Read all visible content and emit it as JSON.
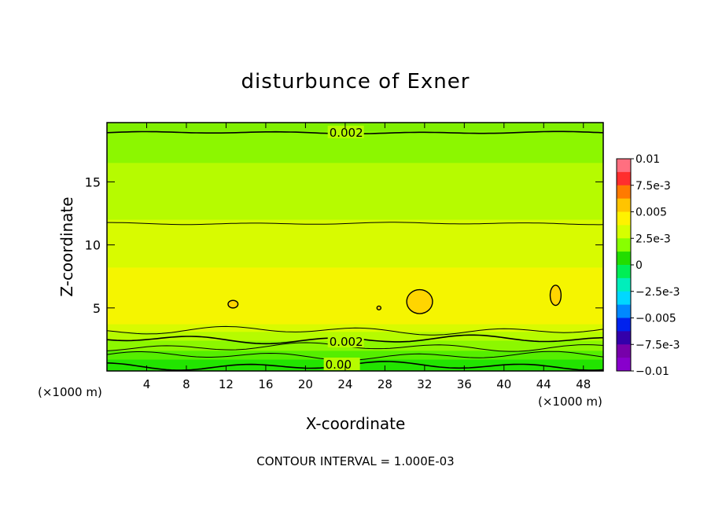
{
  "chart_data": {
    "type": "contour",
    "title": "disturbunce of Exner",
    "xlabel": "X-coordinate",
    "ylabel": "Z-coordinate",
    "x_unit_label_left": "(×1000 m)",
    "x_unit_label_right": "(×1000 m)",
    "xlim": [
      0,
      50
    ],
    "ylim": [
      0,
      19.7
    ],
    "x_ticks": [
      4,
      8,
      12,
      16,
      20,
      24,
      28,
      32,
      36,
      40,
      44,
      48
    ],
    "y_ticks": [
      5,
      10,
      15
    ],
    "footer": "CONTOUR INTERVAL = 1.000E-03",
    "colorbar": {
      "labels": [
        "0.01",
        "7.5e-3",
        "0.005",
        "2.5e-3",
        "0",
        "−2.5e-3",
        "−0.005",
        "−7.5e-3",
        "−0.01"
      ],
      "colors": [
        "#ff6f80",
        "#ff2e2e",
        "#ff7a00",
        "#ffc400",
        "#fff200",
        "#d6ff00",
        "#88ff00",
        "#22dd00",
        "#00ee55",
        "#00eebb",
        "#00d8ff",
        "#0088ff",
        "#0022ee",
        "#3300aa",
        "#7700aa",
        "#8800cc"
      ]
    },
    "contour_labels": [
      {
        "text": "0.002",
        "x": 22.4,
        "z": 18.9
      },
      {
        "text": "0.002",
        "x": 22.4,
        "z": 2.3
      },
      {
        "text": "0.00",
        "x": 22.0,
        "z": 0.5
      }
    ],
    "bands": [
      {
        "z0": 19.0,
        "z1": 19.7,
        "color": "#7fef00"
      },
      {
        "z0": 16.5,
        "z1": 19.0,
        "color": "#8cf700"
      },
      {
        "z0": 12.0,
        "z1": 16.5,
        "color": "#b6fb00"
      },
      {
        "z0": 8.2,
        "z1": 12.0,
        "color": "#d8fb00"
      },
      {
        "z0": 3.7,
        "z1": 8.2,
        "color": "#f5f500"
      },
      {
        "z0": 3.1,
        "z1": 3.7,
        "color": "#d8fb00"
      },
      {
        "z0": 2.4,
        "z1": 3.1,
        "color": "#b6fb00"
      },
      {
        "z0": 1.6,
        "z1": 2.4,
        "color": "#8cf700"
      },
      {
        "z0": 0.9,
        "z1": 1.6,
        "color": "#55ee00"
      },
      {
        "z0": 0.0,
        "z1": 0.9,
        "color": "#22e400"
      }
    ],
    "contours": [
      {
        "z": 18.9,
        "width": 1.6
      },
      {
        "z": 11.7,
        "width": 1.0
      },
      {
        "z": 3.2,
        "width": 1.0
      },
      {
        "z": 2.5,
        "width": 1.6
      },
      {
        "z": 1.9,
        "width": 1.0
      },
      {
        "z": 1.2,
        "width": 1.0
      },
      {
        "z": 0.4,
        "width": 1.6
      }
    ],
    "highs": [
      {
        "x": 31.5,
        "z": 5.5,
        "rx": 1.3,
        "rz": 0.95
      },
      {
        "x": 45.2,
        "z": 6.0,
        "rx": 0.55,
        "rz": 0.8
      },
      {
        "x": 12.7,
        "z": 5.3,
        "rx": 0.5,
        "rz": 0.3
      },
      {
        "x": 27.4,
        "z": 5.0,
        "rx": 0.2,
        "rz": 0.15
      }
    ]
  }
}
